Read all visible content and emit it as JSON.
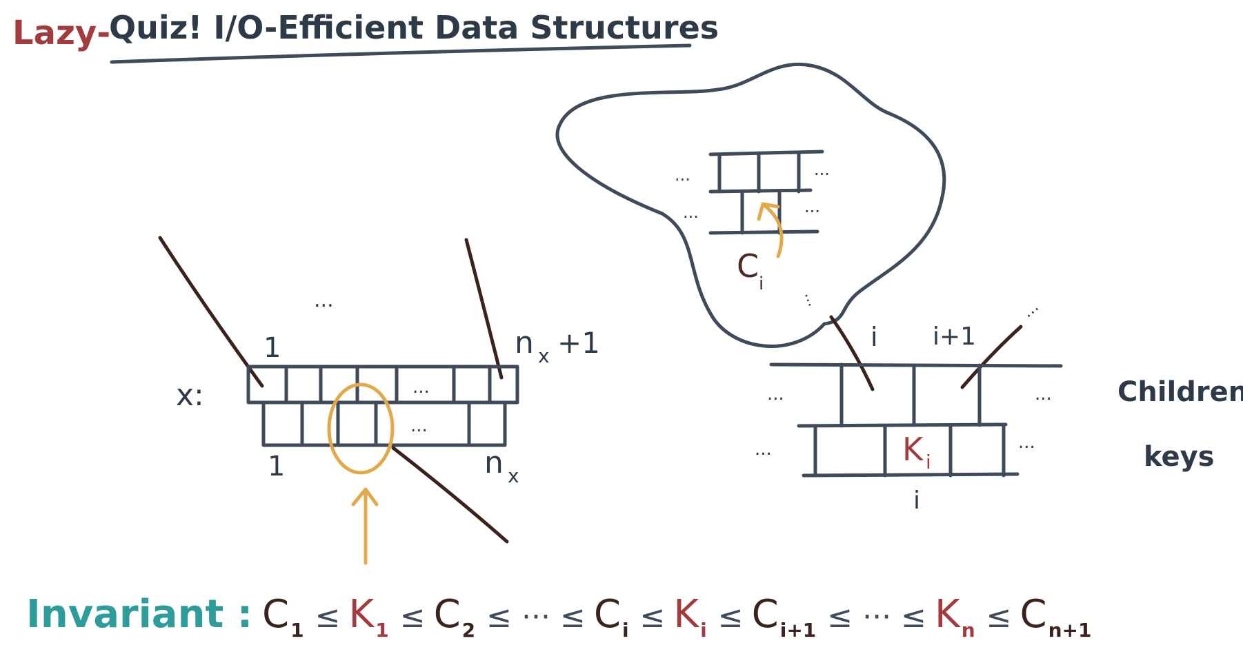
{
  "title": {
    "prefix": "Lazy-",
    "main": "Quiz! I/O-Efficient Data Structures"
  },
  "left_node": {
    "node_label": "x:",
    "top_start_index": "1",
    "top_end_index": "n",
    "top_end_subscript": "x",
    "top_end_suffix": "+1",
    "bottom_start_index": "1",
    "bottom_end_index": "n",
    "bottom_end_subscript": "x",
    "ellipsis_above": "...",
    "ellipsis_top_row": "...",
    "ellipsis_bottom_row": "..."
  },
  "cloud": {
    "child_label": "C",
    "child_label_subscript": "i",
    "ellipsis_left_top": "...",
    "ellipsis_right_top": "...",
    "ellipsis_left_bottom": "...",
    "ellipsis_right_bottom": "...",
    "ellipsis_trail": "..."
  },
  "right_node": {
    "pointer_index_left": "i",
    "pointer_index_right": "i+1",
    "key_label": "K",
    "key_subscript": "i",
    "key_index_below": "i",
    "row_children_label": "Children",
    "row_keys_label": "keys",
    "ellipsis_children_left": "...",
    "ellipsis_children_right": "...",
    "ellipsis_keys_left": "...",
    "ellipsis_keys_right": "...",
    "ellipsis_pointer_right": "..."
  },
  "invariant": {
    "label": "Invariant :",
    "terms": [
      {
        "base": "C",
        "sub": "1",
        "color": "dark"
      },
      {
        "base": "≤",
        "sub": "",
        "color": "dark"
      },
      {
        "base": "K",
        "sub": "1",
        "color": "red"
      },
      {
        "base": "≤",
        "sub": "",
        "color": "dark"
      },
      {
        "base": "C",
        "sub": "2",
        "color": "dark"
      },
      {
        "base": "≤ ··· ≤",
        "sub": "",
        "color": "dark"
      },
      {
        "base": "C",
        "sub": "i",
        "color": "dark"
      },
      {
        "base": "≤",
        "sub": "",
        "color": "dark"
      },
      {
        "base": "K",
        "sub": "i",
        "color": "red"
      },
      {
        "base": "≤",
        "sub": "",
        "color": "dark"
      },
      {
        "base": "C",
        "sub": "i+1",
        "color": "dark"
      },
      {
        "base": "≤ ··· ≤",
        "sub": "",
        "color": "dark"
      },
      {
        "base": "K",
        "sub": "n",
        "color": "red"
      },
      {
        "base": "≤",
        "sub": "",
        "color": "dark"
      },
      {
        "base": "C",
        "sub": "n+1",
        "color": "dark"
      }
    ]
  },
  "colors": {
    "ink_dark": "#3f4a5a",
    "ink_red": "#a23a3e",
    "ink_brown": "#3a221d",
    "ink_gold": "#e2a94a",
    "ink_teal": "#2d9c9a"
  }
}
